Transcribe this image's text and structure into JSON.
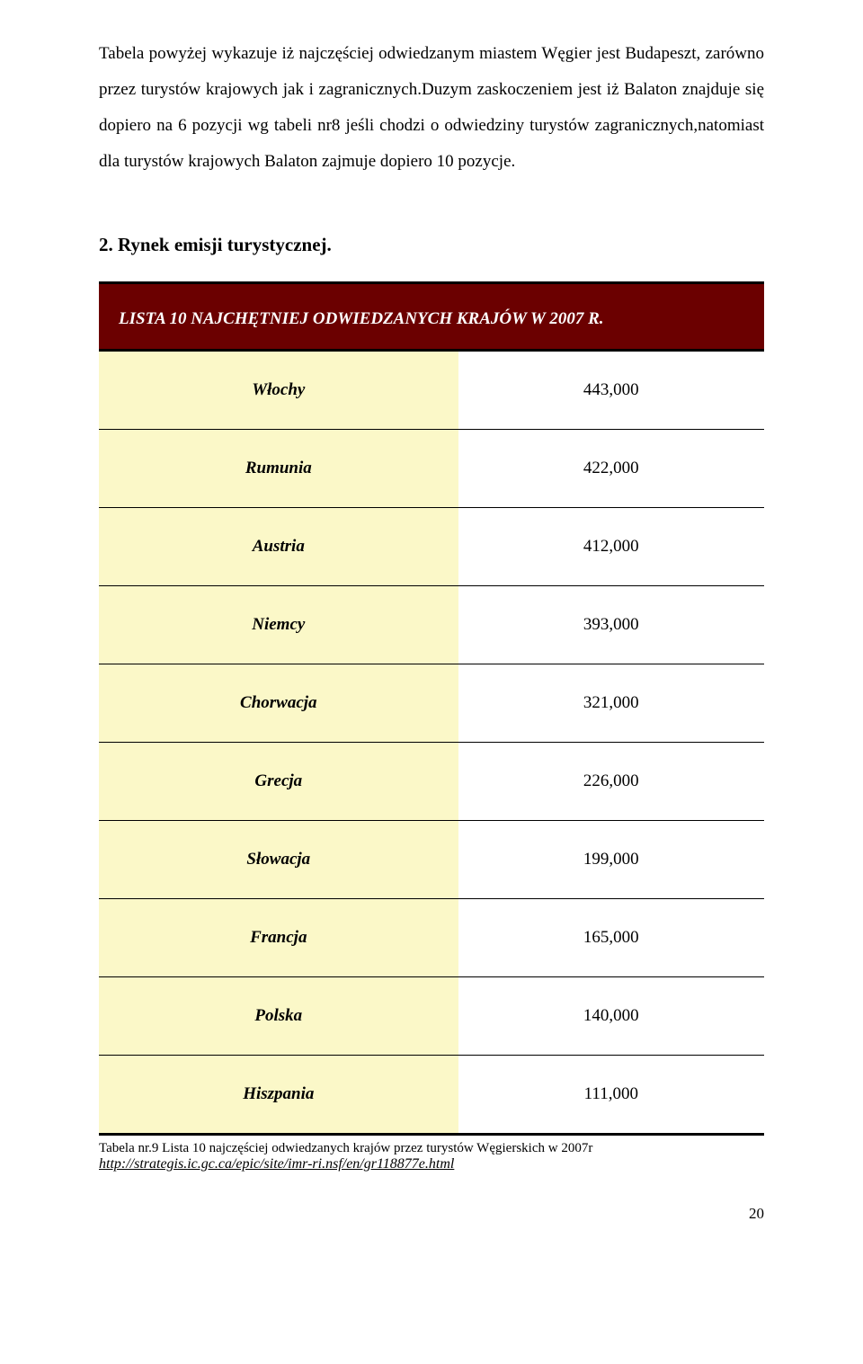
{
  "paragraph1": "Tabela powyżej wykazuje iż najczęściej odwiedzanym miastem Węgier jest Budapeszt, zarówno przez turystów krajowych jak i zagranicznych.Duzym zaskoczeniem jest iż Balaton znajduje się dopiero na 6 pozycji wg tabeli nr8 jeśli chodzi o odwiedziny turystów zagranicznych,natomiast dla turystów krajowych Balaton zajmuje dopiero 10 pozycje.",
  "heading": "2. Rynek emisji  turystycznej.",
  "table": {
    "title": "LISTA 10 NAJCHĘTNIEJ ODWIEDZANYCH KRAJÓW W 2007 R.",
    "header_bg": "#6b0000",
    "header_fg": "#ffffff",
    "left_bg": "#fbf8c8",
    "right_bg": "#ffffff",
    "rows": [
      {
        "country": "Włochy",
        "value": "443,000"
      },
      {
        "country": "Rumunia",
        "value": "422,000"
      },
      {
        "country": "Austria",
        "value": "412,000"
      },
      {
        "country": "Niemcy",
        "value": "393,000"
      },
      {
        "country": "Chorwacja",
        "value": "321,000"
      },
      {
        "country": "Grecja",
        "value": "226,000"
      },
      {
        "country": "Słowacja",
        "value": "199,000"
      },
      {
        "country": "Francja",
        "value": "165,000"
      },
      {
        "country": "Polska",
        "value": "140,000"
      },
      {
        "country": "Hiszpania",
        "value": "111,000"
      }
    ]
  },
  "caption": "Tabela nr.9 Lista 10 najczęściej odwiedzanych krajów przez turystów Węgierskich w 2007r",
  "link": "http://strategis.ic.gc.ca/epic/site/imr-ri.nsf/en/gr118877e.html",
  "page_number": "20"
}
